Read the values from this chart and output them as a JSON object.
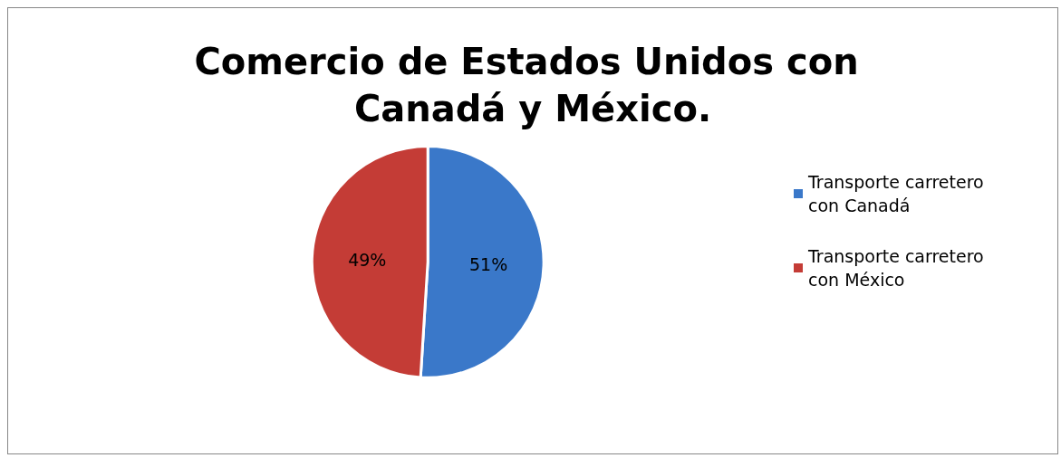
{
  "chart_data": {
    "type": "pie",
    "title": "Comercio de Estados Unidos con Canadá y México.",
    "categories": [
      "Transporte carretero con Canadá",
      "Transporte carretero con México"
    ],
    "values": [
      51,
      49
    ],
    "colors": [
      "#3a78c9",
      "#c43c36"
    ],
    "value_labels": [
      "51%",
      "49%"
    ],
    "legend": "right"
  }
}
